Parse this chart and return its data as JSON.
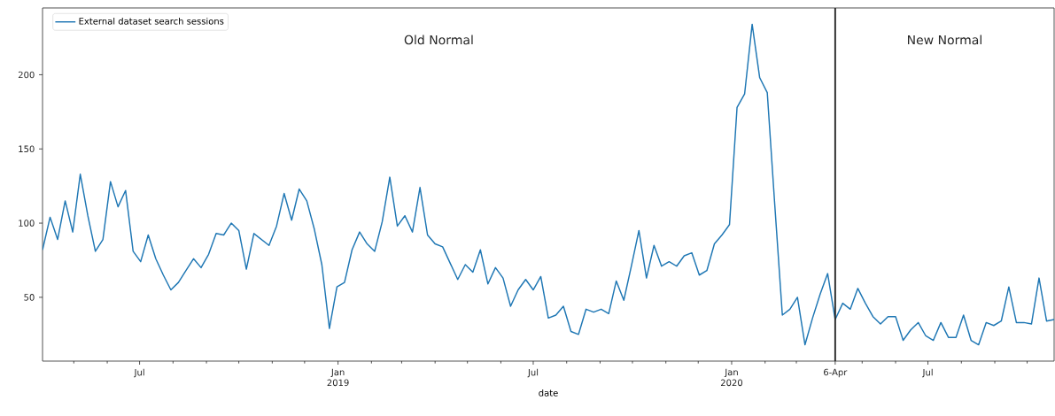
{
  "chart_data": {
    "type": "line",
    "xlabel": "date",
    "annotations": [
      "Old Normal",
      "New Normal"
    ],
    "x": [
      "2018-04-02",
      "2018-04-09",
      "2018-04-16",
      "2018-04-23",
      "2018-04-30",
      "2018-05-07",
      "2018-05-14",
      "2018-05-21",
      "2018-05-28",
      "2018-06-04",
      "2018-06-11",
      "2018-06-18",
      "2018-06-25",
      "2018-07-02",
      "2018-07-09",
      "2018-07-16",
      "2018-07-23",
      "2018-07-30",
      "2018-08-06",
      "2018-08-13",
      "2018-08-20",
      "2018-08-27",
      "2018-09-03",
      "2018-09-10",
      "2018-09-17",
      "2018-09-24",
      "2018-10-01",
      "2018-10-08",
      "2018-10-15",
      "2018-10-22",
      "2018-10-29",
      "2018-11-05",
      "2018-11-12",
      "2018-11-19",
      "2018-11-26",
      "2018-12-03",
      "2018-12-10",
      "2018-12-17",
      "2018-12-24",
      "2018-12-31",
      "2019-01-07",
      "2019-01-14",
      "2019-01-21",
      "2019-01-28",
      "2019-02-04",
      "2019-02-11",
      "2019-02-18",
      "2019-02-25",
      "2019-03-04",
      "2019-03-11",
      "2019-03-18",
      "2019-03-25",
      "2019-04-01",
      "2019-04-08",
      "2019-04-15",
      "2019-04-22",
      "2019-04-29",
      "2019-05-06",
      "2019-05-13",
      "2019-05-20",
      "2019-05-27",
      "2019-06-03",
      "2019-06-10",
      "2019-06-17",
      "2019-06-24",
      "2019-07-01",
      "2019-07-08",
      "2019-07-15",
      "2019-07-22",
      "2019-07-29",
      "2019-08-05",
      "2019-08-12",
      "2019-08-19",
      "2019-08-26",
      "2019-09-02",
      "2019-09-09",
      "2019-09-16",
      "2019-09-23",
      "2019-09-30",
      "2019-10-07",
      "2019-10-14",
      "2019-10-21",
      "2019-10-28",
      "2019-11-04",
      "2019-11-11",
      "2019-11-18",
      "2019-11-25",
      "2019-12-02",
      "2019-12-09",
      "2019-12-16",
      "2019-12-23",
      "2019-12-30",
      "2020-01-06",
      "2020-01-13",
      "2020-01-20",
      "2020-01-27",
      "2020-02-03",
      "2020-02-10",
      "2020-02-17",
      "2020-02-24",
      "2020-03-02",
      "2020-03-09",
      "2020-03-16",
      "2020-03-23",
      "2020-03-30",
      "2020-04-06",
      "2020-04-13",
      "2020-04-20",
      "2020-04-27",
      "2020-05-04",
      "2020-05-11",
      "2020-05-18",
      "2020-05-25",
      "2020-06-01",
      "2020-06-08",
      "2020-06-15",
      "2020-06-22",
      "2020-06-29",
      "2020-07-06",
      "2020-07-13",
      "2020-07-20",
      "2020-07-27",
      "2020-08-03",
      "2020-08-10",
      "2020-08-17",
      "2020-08-24",
      "2020-08-31",
      "2020-09-07",
      "2020-09-14",
      "2020-09-21",
      "2020-09-28",
      "2020-10-05",
      "2020-10-12",
      "2020-10-19",
      "2020-10-26"
    ],
    "series": [
      {
        "name": "External dataset search sessions",
        "color": "#1f77b4",
        "values": [
          82,
          104,
          89,
          115,
          94,
          133,
          105,
          81,
          89,
          128,
          111,
          122,
          81,
          74,
          92,
          76,
          65,
          55,
          60,
          68,
          76,
          70,
          79,
          93,
          92,
          100,
          95,
          69,
          93,
          89,
          85,
          98,
          120,
          102,
          123,
          115,
          96,
          72,
          29,
          57,
          60,
          82,
          94,
          86,
          81,
          101,
          131,
          98,
          105,
          94,
          124,
          92,
          86,
          84,
          73,
          62,
          72,
          67,
          82,
          59,
          70,
          63,
          44,
          55,
          62,
          55,
          64,
          36,
          38,
          44,
          27,
          25,
          42,
          40,
          42,
          39,
          61,
          48,
          71,
          95,
          63,
          85,
          71,
          74,
          71,
          78,
          80,
          65,
          68,
          86,
          92,
          99,
          178,
          187,
          234,
          198,
          188,
          112,
          38,
          42,
          50,
          18,
          36,
          52,
          66,
          35,
          46,
          42,
          56,
          46,
          37,
          32,
          37,
          37,
          21,
          28,
          33,
          24,
          21,
          33,
          23,
          23,
          38,
          21,
          18,
          33,
          31,
          34,
          57,
          33,
          33,
          32,
          63,
          34,
          35
        ]
      }
    ],
    "xlim": [
      "2018-04-02",
      "2020-10-26"
    ],
    "xticks": [
      {
        "value": "2018-05-01",
        "label": null
      },
      {
        "value": "2018-06-01",
        "label": null
      },
      {
        "value": "2018-07-01",
        "label": "Jul"
      },
      {
        "value": "2018-08-01",
        "label": null
      },
      {
        "value": "2018-09-01",
        "label": null
      },
      {
        "value": "2018-10-01",
        "label": null
      },
      {
        "value": "2018-11-01",
        "label": null
      },
      {
        "value": "2018-12-01",
        "label": null
      },
      {
        "value": "2019-01-01",
        "label": "Jan 2019"
      },
      {
        "value": "2019-02-01",
        "label": null
      },
      {
        "value": "2019-03-01",
        "label": null
      },
      {
        "value": "2019-04-01",
        "label": null
      },
      {
        "value": "2019-05-01",
        "label": null
      },
      {
        "value": "2019-06-01",
        "label": null
      },
      {
        "value": "2019-07-01",
        "label": "Jul"
      },
      {
        "value": "2019-08-01",
        "label": null
      },
      {
        "value": "2019-09-01",
        "label": null
      },
      {
        "value": "2019-10-01",
        "label": null
      },
      {
        "value": "2019-11-01",
        "label": null
      },
      {
        "value": "2019-12-01",
        "label": null
      },
      {
        "value": "2020-01-01",
        "label": "Jan 2020"
      },
      {
        "value": "2020-02-01",
        "label": null
      },
      {
        "value": "2020-03-01",
        "label": null
      },
      {
        "value": "2020-04-06",
        "label": "6-Apr"
      },
      {
        "value": "2020-05-01",
        "label": null
      },
      {
        "value": "2020-06-01",
        "label": null
      },
      {
        "value": "2020-07-01",
        "label": "Jul"
      },
      {
        "value": "2020-08-01",
        "label": null
      },
      {
        "value": "2020-09-01",
        "label": null
      },
      {
        "value": "2020-10-01",
        "label": null
      }
    ],
    "ylim": [
      7,
      245
    ],
    "yticks": [
      50,
      100,
      150,
      200
    ],
    "ref_lines": [
      {
        "axis": "x",
        "value": "2020-04-06",
        "label": null,
        "color": "#262626"
      }
    ],
    "legend": "top left"
  }
}
